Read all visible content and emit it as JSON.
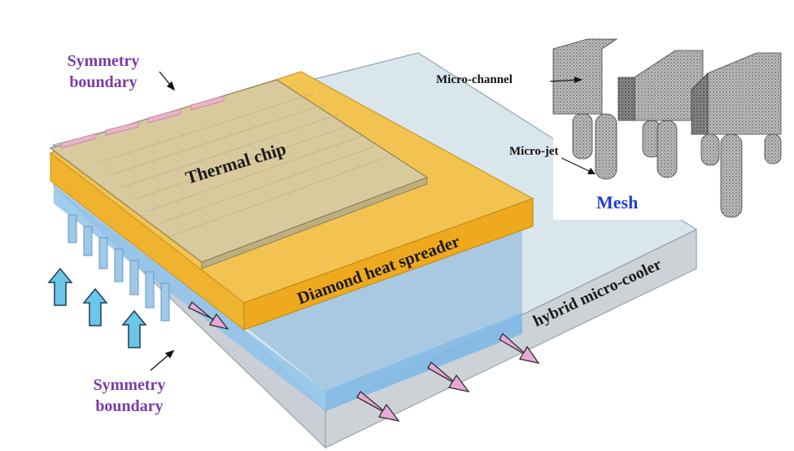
{
  "labels": {
    "symmetry_top_line1": "Symmetry",
    "symmetry_top_line2": "boundary",
    "symmetry_bottom_line1": "Symmetry",
    "symmetry_bottom_line2": "boundary",
    "thermal_chip": "Thermal chip",
    "diamond_spreader": "Diamond heat spreader",
    "hybrid_cooler": "hybrid micro-cooler",
    "inset_micro_channel": "Micro-channel",
    "inset_micro_jet": "Micro-jet",
    "inset_mesh": "Mesh"
  },
  "colors": {
    "cooler_top": "#d9e6ec",
    "cooler_side": "#c7ccd1",
    "coolant_layer": "#7fb8e6",
    "diamond": "#f2b022",
    "chip": "#d7c9a0",
    "symmetry_text": "#7a3aa6",
    "mesh_text": "#1c3fd0",
    "inflow_arrow": "#6cc6ea",
    "outflow_arrow": "#e6a9d6"
  }
}
